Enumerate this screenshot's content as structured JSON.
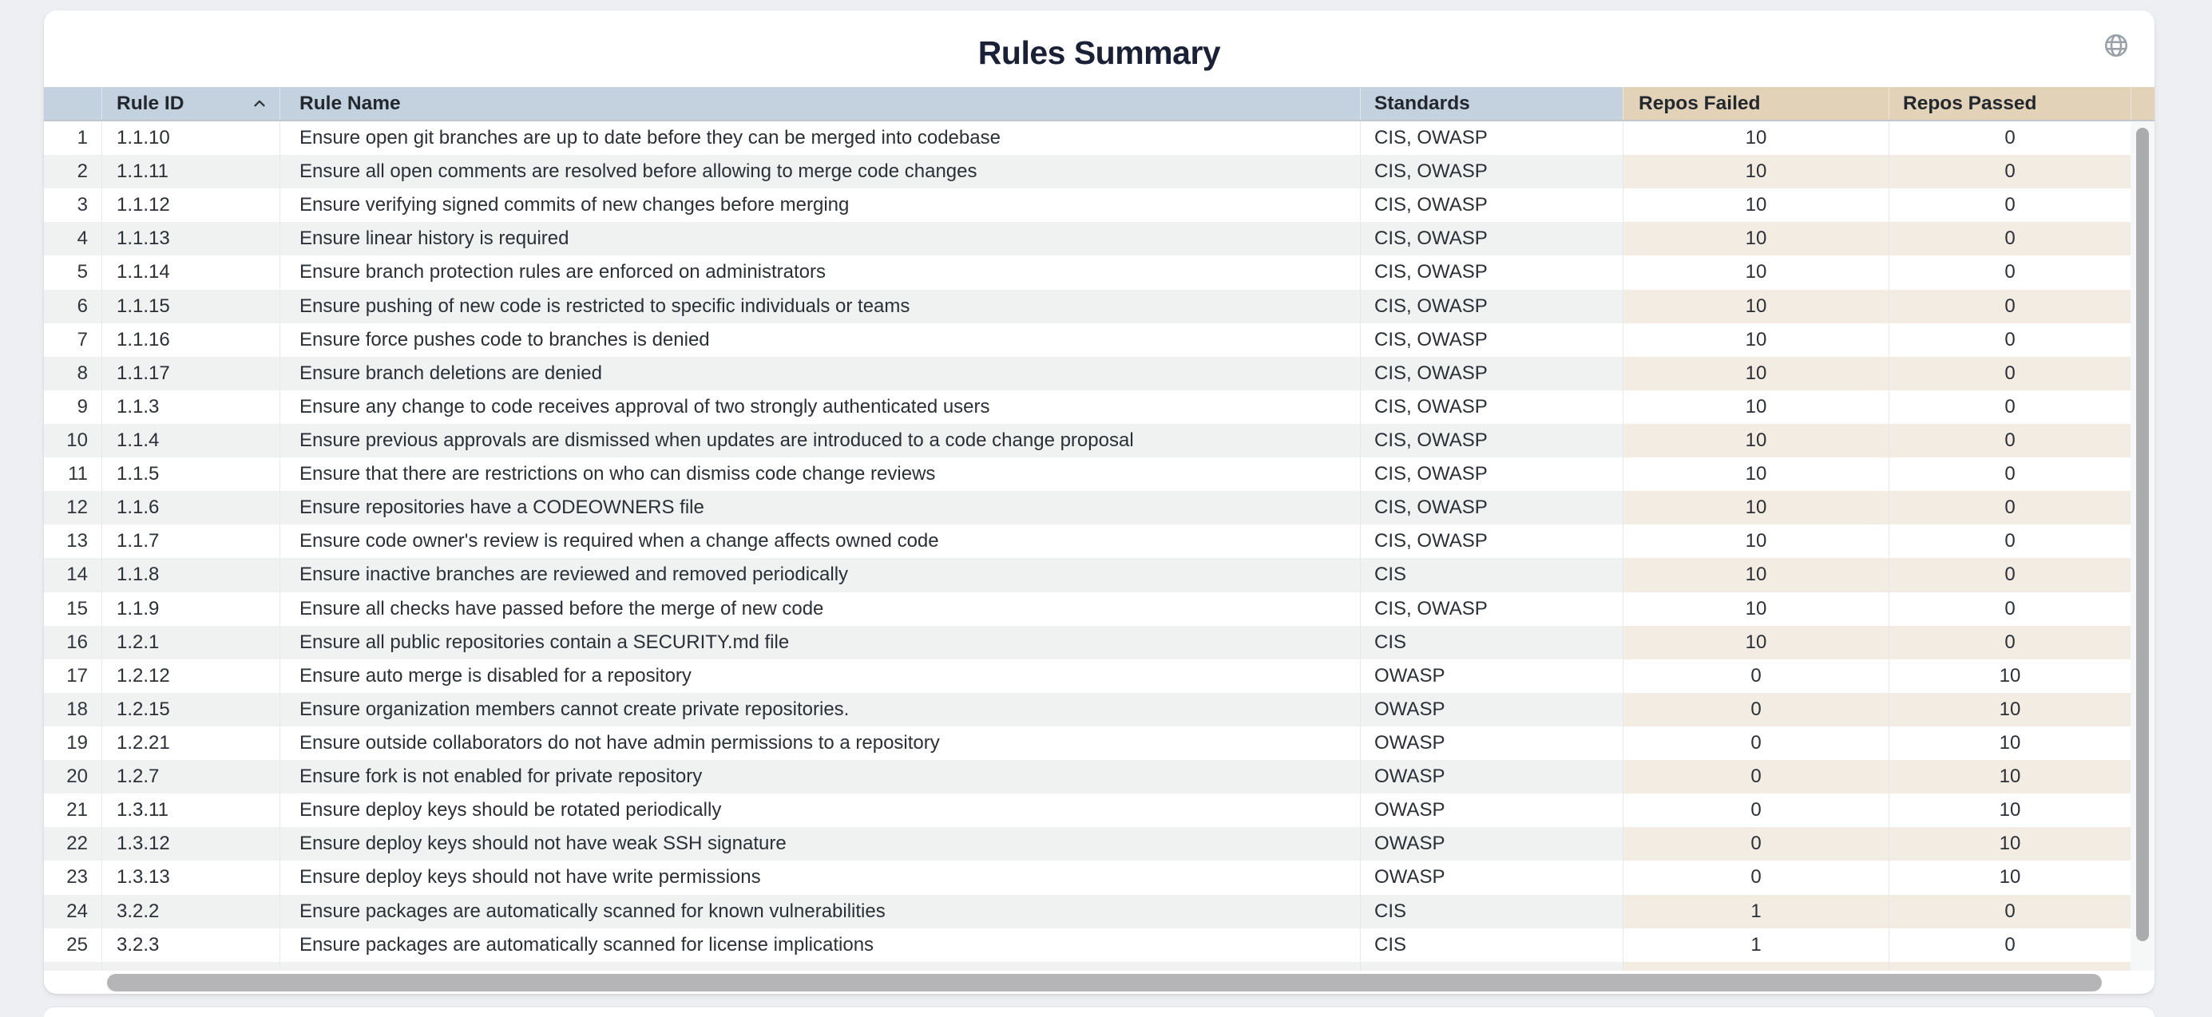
{
  "card": {
    "title": "Rules Summary"
  },
  "icons": {
    "top_right": "globe",
    "rule_id_sort": "chevron-up-ascending"
  },
  "colors": {
    "page_background": "#edeff2",
    "card_background": "#ffffff",
    "header_blue": "#c4d1de",
    "header_tan": "#e2d2b8",
    "stripe_gray": "#f0f1f1",
    "stripe_warm_tan": "#f3ece2",
    "title_text": "#1a2136",
    "body_text": "#2b3036",
    "scrollbar_thumb": "#b5b5b7",
    "globe_icon": "#9aa1a9"
  },
  "table": {
    "columns": [
      {
        "key": "num",
        "label": ""
      },
      {
        "key": "rule_id",
        "label": "Rule ID",
        "sort": "ascending"
      },
      {
        "key": "rule_name",
        "label": "Rule Name"
      },
      {
        "key": "standards",
        "label": "Standards"
      },
      {
        "key": "repos_failed",
        "label": "Repos Failed"
      },
      {
        "key": "repos_passed",
        "label": "Repos Passed"
      }
    ],
    "rows": [
      {
        "num": "1",
        "rule_id": "1.1.10",
        "rule_name": "Ensure open git branches are up to date before they can be merged into codebase",
        "standards": "CIS, OWASP",
        "repos_failed": "10",
        "repos_passed": "0"
      },
      {
        "num": "2",
        "rule_id": "1.1.11",
        "rule_name": "Ensure all open comments are resolved before allowing to merge code changes",
        "standards": "CIS, OWASP",
        "repos_failed": "10",
        "repos_passed": "0"
      },
      {
        "num": "3",
        "rule_id": "1.1.12",
        "rule_name": "Ensure verifying signed commits of new changes before merging",
        "standards": "CIS, OWASP",
        "repos_failed": "10",
        "repos_passed": "0"
      },
      {
        "num": "4",
        "rule_id": "1.1.13",
        "rule_name": "Ensure linear history is required",
        "standards": "CIS, OWASP",
        "repos_failed": "10",
        "repos_passed": "0"
      },
      {
        "num": "5",
        "rule_id": "1.1.14",
        "rule_name": "Ensure branch protection rules are enforced on administrators",
        "standards": "CIS, OWASP",
        "repos_failed": "10",
        "repos_passed": "0"
      },
      {
        "num": "6",
        "rule_id": "1.1.15",
        "rule_name": "Ensure pushing of new code is restricted to specific individuals or teams",
        "standards": "CIS, OWASP",
        "repos_failed": "10",
        "repos_passed": "0"
      },
      {
        "num": "7",
        "rule_id": "1.1.16",
        "rule_name": "Ensure force pushes code to branches is denied",
        "standards": "CIS, OWASP",
        "repos_failed": "10",
        "repos_passed": "0"
      },
      {
        "num": "8",
        "rule_id": "1.1.17",
        "rule_name": "Ensure branch deletions are denied",
        "standards": "CIS, OWASP",
        "repos_failed": "10",
        "repos_passed": "0"
      },
      {
        "num": "9",
        "rule_id": "1.1.3",
        "rule_name": "Ensure any change to code receives approval of two strongly authenticated users",
        "standards": "CIS, OWASP",
        "repos_failed": "10",
        "repos_passed": "0"
      },
      {
        "num": "10",
        "rule_id": "1.1.4",
        "rule_name": "Ensure previous approvals are dismissed when updates are introduced to a code change proposal",
        "standards": "CIS, OWASP",
        "repos_failed": "10",
        "repos_passed": "0"
      },
      {
        "num": "11",
        "rule_id": "1.1.5",
        "rule_name": "Ensure that there are restrictions on who can dismiss code change reviews",
        "standards": "CIS, OWASP",
        "repos_failed": "10",
        "repos_passed": "0"
      },
      {
        "num": "12",
        "rule_id": "1.1.6",
        "rule_name": "Ensure repositories have a CODEOWNERS file",
        "standards": "CIS, OWASP",
        "repos_failed": "10",
        "repos_passed": "0"
      },
      {
        "num": "13",
        "rule_id": "1.1.7",
        "rule_name": "Ensure code owner's review is required when a change affects owned code",
        "standards": "CIS, OWASP",
        "repos_failed": "10",
        "repos_passed": "0"
      },
      {
        "num": "14",
        "rule_id": "1.1.8",
        "rule_name": "Ensure inactive branches are reviewed and removed periodically",
        "standards": "CIS",
        "repos_failed": "10",
        "repos_passed": "0"
      },
      {
        "num": "15",
        "rule_id": "1.1.9",
        "rule_name": "Ensure all checks have passed before the merge of new code",
        "standards": "CIS, OWASP",
        "repos_failed": "10",
        "repos_passed": "0"
      },
      {
        "num": "16",
        "rule_id": "1.2.1",
        "rule_name": "Ensure all public repositories contain a SECURITY.md file",
        "standards": "CIS",
        "repos_failed": "10",
        "repos_passed": "0"
      },
      {
        "num": "17",
        "rule_id": "1.2.12",
        "rule_name": "Ensure auto merge is disabled for a repository",
        "standards": "OWASP",
        "repos_failed": "0",
        "repos_passed": "10"
      },
      {
        "num": "18",
        "rule_id": "1.2.15",
        "rule_name": "Ensure organization members cannot create private repositories.",
        "standards": "OWASP",
        "repos_failed": "0",
        "repos_passed": "10"
      },
      {
        "num": "19",
        "rule_id": "1.2.21",
        "rule_name": "Ensure outside collaborators do not have admin permissions to a repository",
        "standards": "OWASP",
        "repos_failed": "0",
        "repos_passed": "10"
      },
      {
        "num": "20",
        "rule_id": "1.2.7",
        "rule_name": "Ensure fork is not enabled for private repository",
        "standards": "OWASP",
        "repos_failed": "0",
        "repos_passed": "10"
      },
      {
        "num": "21",
        "rule_id": "1.3.11",
        "rule_name": "Ensure deploy keys should be rotated periodically",
        "standards": "OWASP",
        "repos_failed": "0",
        "repos_passed": "10"
      },
      {
        "num": "22",
        "rule_id": "1.3.12",
        "rule_name": "Ensure deploy keys should not have weak SSH signature",
        "standards": "OWASP",
        "repos_failed": "0",
        "repos_passed": "10"
      },
      {
        "num": "23",
        "rule_id": "1.3.13",
        "rule_name": "Ensure deploy keys should not have write permissions",
        "standards": "OWASP",
        "repos_failed": "0",
        "repos_passed": "10"
      },
      {
        "num": "24",
        "rule_id": "3.2.2",
        "rule_name": "Ensure packages are automatically scanned for known vulnerabilities",
        "standards": "CIS",
        "repos_failed": "1",
        "repos_passed": "0"
      },
      {
        "num": "25",
        "rule_id": "3.2.3",
        "rule_name": "Ensure packages are automatically scanned for license implications",
        "standards": "CIS",
        "repos_failed": "1",
        "repos_passed": "0"
      }
    ]
  }
}
